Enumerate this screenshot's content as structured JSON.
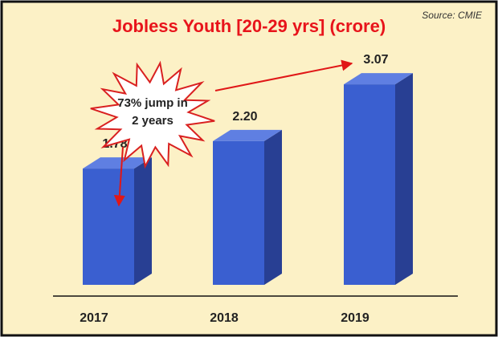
{
  "chart_data": {
    "type": "bar",
    "title": "Jobless Youth [20-29 yrs] (crore)",
    "source": "Source: CMIE",
    "categories": [
      "2017",
      "2018",
      "2019"
    ],
    "values": [
      1.78,
      2.2,
      3.07
    ],
    "value_labels": [
      "1.78",
      "2.20",
      "3.07"
    ],
    "annotation": {
      "line1": "73% jump in",
      "line2": "2 years"
    },
    "style": "3d-bar",
    "grid": false,
    "legend": "none"
  },
  "colors": {
    "background": "#fcf1c6",
    "border": "#111111",
    "title": "#e8141b",
    "bar_front": "#3a5fd0",
    "bar_top": "#5f7fe2",
    "bar_side": "#283f93",
    "arrow": "#e01717",
    "burst_stroke": "#d92020",
    "burst_fill": "#ffffff",
    "text": "#222222",
    "source_text": "#333333",
    "baseline": "#111111"
  }
}
